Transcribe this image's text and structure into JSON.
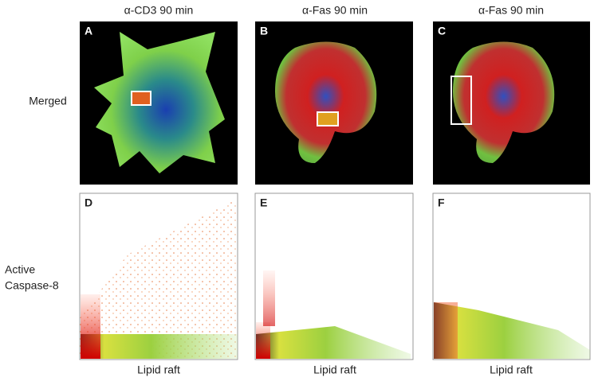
{
  "columns": [
    "α-CD3 90 min",
    "α-Fas 90 min",
    "α-Fas 90 min"
  ],
  "rows": [
    [
      "Merged"
    ],
    [
      "Active",
      "Caspase-8"
    ]
  ],
  "panels": [
    "A",
    "B",
    "C",
    "D",
    "E",
    "F"
  ],
  "x_labels": [
    "Lipid raft",
    "Lipid raft",
    "Lipid raft"
  ]
}
